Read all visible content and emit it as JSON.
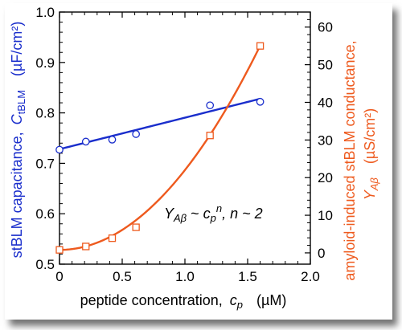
{
  "chart_data": {
    "type": "scatter",
    "xlabel": "peptide concentration,",
    "xlabel_var": "c",
    "xlabel_sub": "p",
    "xlabel_unit": "(µM)",
    "xlim": [
      0,
      2.0
    ],
    "x_ticks": [
      "0",
      "0.5",
      "1.0",
      "1.5",
      "2.0"
    ],
    "x_tick_values": [
      0,
      0.5,
      1.0,
      1.5,
      2.0
    ],
    "y_left": {
      "label": "stBLM capacitance,",
      "label_var": "C",
      "label_sub": "tBLM",
      "label_unit": "(µF/cm²)",
      "lim": [
        0.5,
        1.0
      ],
      "ticks": [
        "0.5",
        "0.6",
        "0.7",
        "0.8",
        "0.9",
        "1.0"
      ],
      "tick_values": [
        0.5,
        0.6,
        0.7,
        0.8,
        0.9,
        1.0
      ],
      "color": "#1a2ecc"
    },
    "y_right": {
      "label": "amyloid-induced stBLM conductance,",
      "label_var": "Y",
      "label_sub": "Aβ",
      "label_unit": "(µS/cm²)",
      "lim": [
        -3,
        64
      ],
      "ticks": [
        "0",
        "10",
        "20",
        "30",
        "40",
        "50",
        "60"
      ],
      "tick_values": [
        0,
        10,
        20,
        30,
        40,
        50,
        60
      ],
      "color": "#ee5a1e"
    },
    "series": [
      {
        "axis": "left",
        "marker": "circle",
        "color": "#1a2ecc",
        "x": [
          0,
          0.21,
          0.42,
          0.61,
          1.2,
          1.6
        ],
        "y": [
          0.727,
          0.743,
          0.747,
          0.758,
          0.815,
          0.822
        ],
        "fit": {
          "type": "linear",
          "intercept": 0.728,
          "slope": 0.0625,
          "x_range": [
            0,
            1.6
          ]
        }
      },
      {
        "axis": "right",
        "marker": "square",
        "color": "#ee5a1e",
        "x": [
          0,
          0.21,
          0.42,
          0.61,
          1.2,
          1.6
        ],
        "y": [
          0.8,
          1.7,
          3.9,
          6.8,
          31.2,
          55.0
        ],
        "fit": {
          "type": "power",
          "a": 0.8,
          "b": 21.2,
          "n": 2,
          "x_range": [
            0,
            1.6
          ]
        }
      }
    ],
    "annotation": {
      "y": "Y",
      "y_sub": "Aβ",
      "tilde1": " ~ ",
      "c": "c",
      "c_sub": "p",
      "n_sup": "n",
      "rest": ", n ~ 2"
    }
  }
}
